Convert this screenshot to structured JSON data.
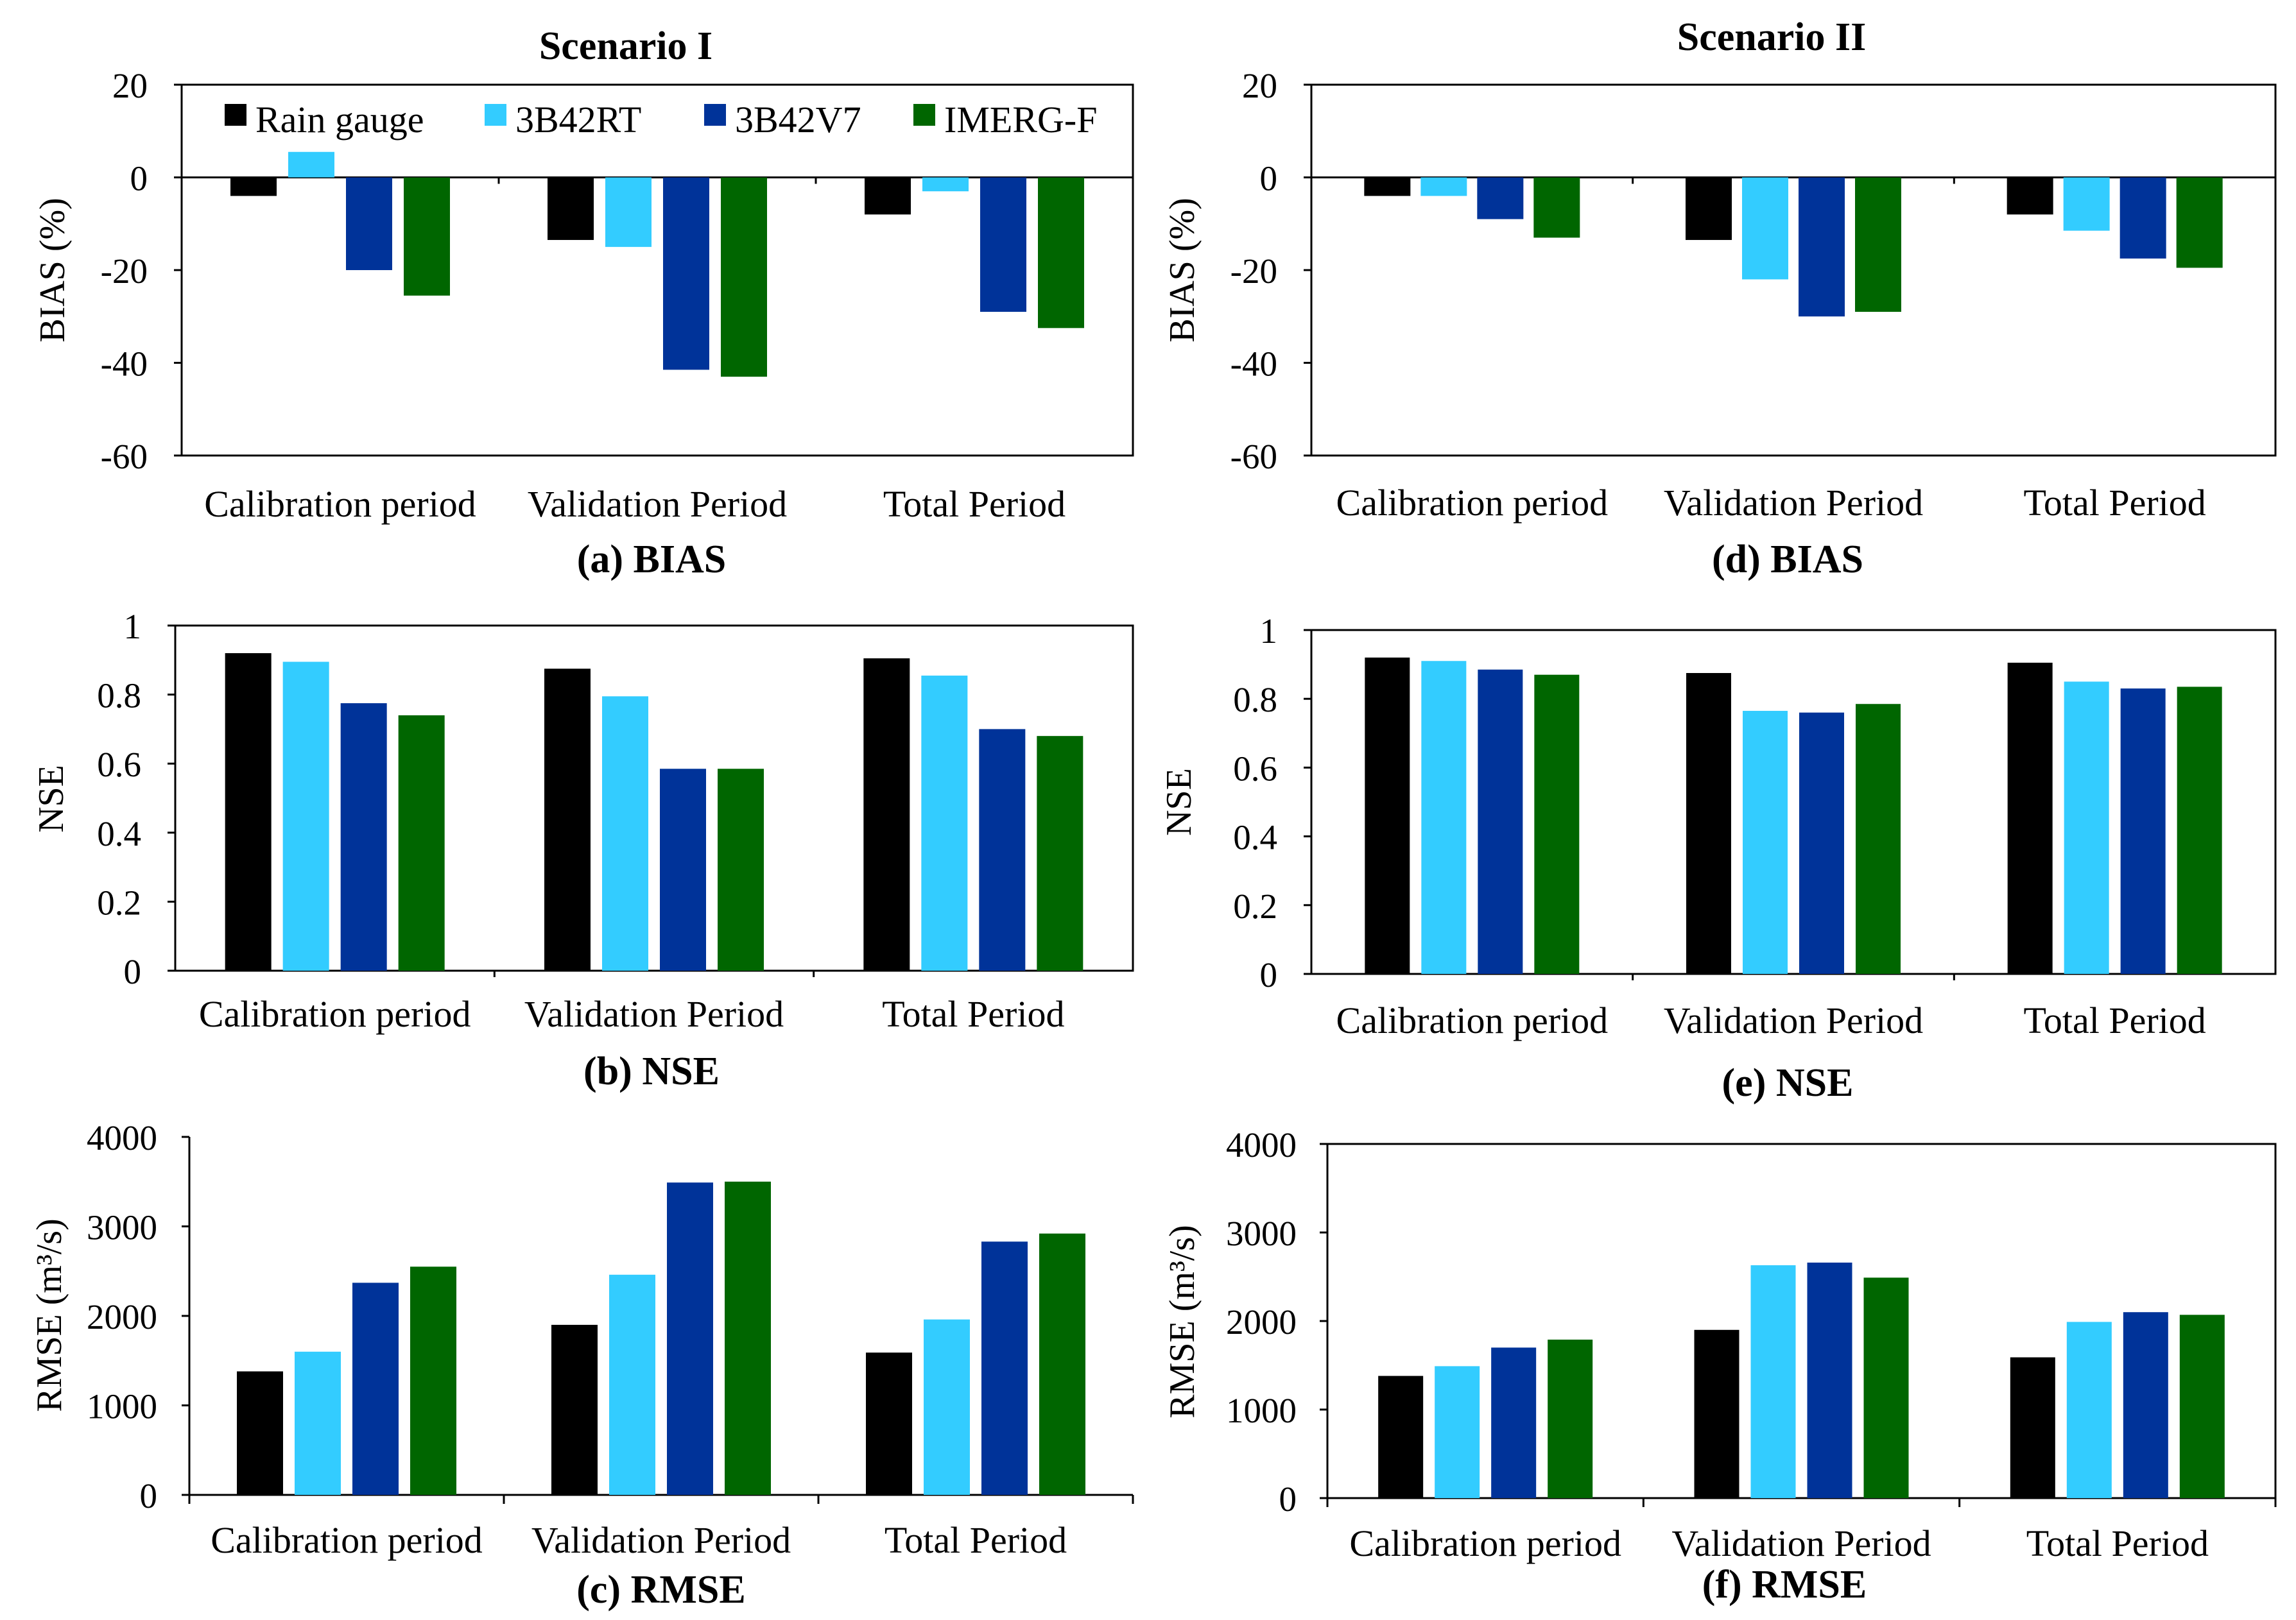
{
  "scenarios": [
    {
      "title": "Scenario I"
    },
    {
      "title": "Scenario II"
    }
  ],
  "legend": [
    {
      "name": "Rain gauge",
      "color": "#000000"
    },
    {
      "name": "3B42RT",
      "color": "#33CCFF"
    },
    {
      "name": "3B42V7",
      "color": "#003399"
    },
    {
      "name": "IMERG-F",
      "color": "#006600"
    }
  ],
  "chart_data": [
    {
      "type": "bar",
      "panel": "a",
      "scenario": "Scenario I",
      "caption": "(a) BIAS",
      "ylabel": "BIAS (%)",
      "ylim": [
        -60,
        20
      ],
      "yticks": [
        20,
        0,
        -20,
        -40,
        -60
      ],
      "categories": [
        "Calibration period",
        "Validation Period",
        "Total Period"
      ],
      "series": [
        {
          "name": "Rain gauge",
          "values": [
            -4,
            -13.5,
            -8
          ]
        },
        {
          "name": "3B42RT",
          "values": [
            5.5,
            -15,
            -3
          ]
        },
        {
          "name": "3B42V7",
          "values": [
            -20,
            -41.5,
            -29
          ]
        },
        {
          "name": "IMERG-F",
          "values": [
            -25.5,
            -43,
            -32.5
          ]
        }
      ],
      "legend_position": "top"
    },
    {
      "type": "bar",
      "panel": "d",
      "scenario": "Scenario II",
      "caption": "(d) BIAS",
      "ylabel": "BIAS (%)",
      "ylim": [
        -60,
        20
      ],
      "yticks": [
        20,
        0,
        -20,
        -40,
        -60
      ],
      "categories": [
        "Calibration period",
        "Validation Period",
        "Total Period"
      ],
      "series": [
        {
          "name": "Rain gauge",
          "values": [
            -4,
            -13.5,
            -8
          ]
        },
        {
          "name": "3B42RT",
          "values": [
            -4,
            -22,
            -11.5
          ]
        },
        {
          "name": "3B42V7",
          "values": [
            -9,
            -30,
            -17.5
          ]
        },
        {
          "name": "IMERG-F",
          "values": [
            -13,
            -29,
            -19.5
          ]
        }
      ]
    },
    {
      "type": "bar",
      "panel": "b",
      "scenario": "Scenario I",
      "caption": "(b) NSE",
      "ylabel": "NSE",
      "ylim": [
        0,
        1
      ],
      "yticks": [
        "1",
        "0.8",
        "0.6",
        "0.4",
        "0.2",
        "0"
      ],
      "categories": [
        "Calibration period",
        "Validation Period",
        "Total Period"
      ],
      "series": [
        {
          "name": "Rain gauge",
          "values": [
            0.92,
            0.875,
            0.905
          ]
        },
        {
          "name": "3B42RT",
          "values": [
            0.895,
            0.795,
            0.855
          ]
        },
        {
          "name": "3B42V7",
          "values": [
            0.775,
            0.585,
            0.7
          ]
        },
        {
          "name": "IMERG-F",
          "values": [
            0.74,
            0.585,
            0.68
          ]
        }
      ]
    },
    {
      "type": "bar",
      "panel": "e",
      "scenario": "Scenario II",
      "caption": "(e) NSE",
      "ylabel": "NSE",
      "ylim": [
        0,
        1
      ],
      "yticks": [
        "1",
        "0.8",
        "0.6",
        "0.4",
        "0.2",
        "0"
      ],
      "categories": [
        "Calibration period",
        "Validation Period",
        "Total Period"
      ],
      "series": [
        {
          "name": "Rain gauge",
          "values": [
            0.92,
            0.875,
            0.905
          ]
        },
        {
          "name": "3B42RT",
          "values": [
            0.91,
            0.765,
            0.85
          ]
        },
        {
          "name": "3B42V7",
          "values": [
            0.885,
            0.76,
            0.83
          ]
        },
        {
          "name": "IMERG-F",
          "values": [
            0.87,
            0.785,
            0.835
          ]
        }
      ]
    },
    {
      "type": "bar",
      "panel": "c",
      "scenario": "Scenario I",
      "caption": "(c) RMSE",
      "ylabel": "RMSE (m³/s)",
      "ylim": [
        0,
        4000
      ],
      "yticks": [
        4000,
        3000,
        2000,
        1000,
        0
      ],
      "categories": [
        "Calibration period",
        "Validation Period",
        "Total Period"
      ],
      "series": [
        {
          "name": "Rain gauge",
          "values": [
            1380,
            1900,
            1590
          ]
        },
        {
          "name": "3B42RT",
          "values": [
            1600,
            2460,
            1960
          ]
        },
        {
          "name": "3B42V7",
          "values": [
            2370,
            3490,
            2830
          ]
        },
        {
          "name": "IMERG-F",
          "values": [
            2550,
            3500,
            2920
          ]
        }
      ]
    },
    {
      "type": "bar",
      "panel": "f",
      "scenario": "Scenario II",
      "caption": "(f) RMSE",
      "ylabel": "RMSE (m³/s)",
      "ylim": [
        0,
        4000
      ],
      "yticks": [
        4000,
        3000,
        2000,
        1000,
        0
      ],
      "categories": [
        "Calibration period",
        "Validation Period",
        "Total Period"
      ],
      "series": [
        {
          "name": "Rain gauge",
          "values": [
            1380,
            1900,
            1590
          ]
        },
        {
          "name": "3B42RT",
          "values": [
            1490,
            2630,
            1990
          ]
        },
        {
          "name": "3B42V7",
          "values": [
            1700,
            2660,
            2100
          ]
        },
        {
          "name": "IMERG-F",
          "values": [
            1790,
            2490,
            2070
          ]
        }
      ]
    }
  ]
}
